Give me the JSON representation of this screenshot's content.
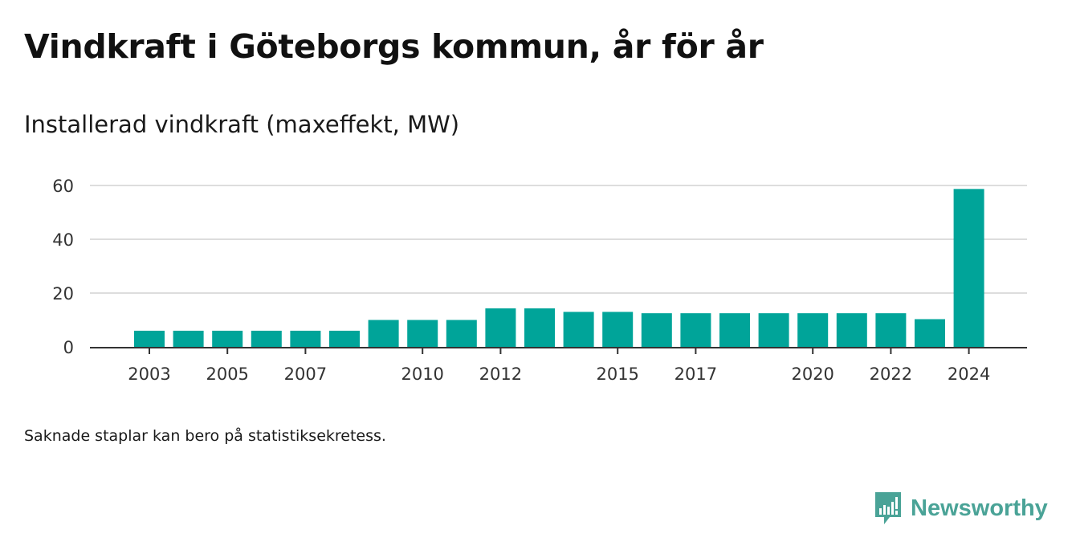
{
  "title": "Vindkraft i Göteborgs kommun, år för år",
  "subtitle": "Installerad vindkraft (maxeffekt, MW)",
  "footnote": "Saknade staplar kan bero på statistiksekretess.",
  "brand": {
    "name": "Newsworthy",
    "color": "#4aa397"
  },
  "chart_data": {
    "type": "bar",
    "title": "Vindkraft i Göteborgs kommun, år för år",
    "ylabel": "Installerad vindkraft (maxeffekt, MW)",
    "xlabel": "",
    "categories": [
      "2003",
      "2004",
      "2005",
      "2006",
      "2007",
      "2008",
      "2009",
      "2010",
      "2011",
      "2012",
      "2013",
      "2014",
      "2015",
      "2016",
      "2017",
      "2018",
      "2019",
      "2020",
      "2021",
      "2022",
      "2023",
      "2024"
    ],
    "values": [
      6,
      6,
      6,
      6,
      6,
      6,
      10,
      10,
      10,
      14.3,
      14.3,
      13,
      13,
      12.5,
      12.5,
      12.5,
      12.5,
      12.5,
      12.5,
      12.5,
      10.3,
      58.7
    ],
    "x_tick_labels": [
      "2003",
      "2005",
      "2007",
      "2010",
      "2012",
      "2015",
      "2017",
      "2020",
      "2022",
      "2024"
    ],
    "y_ticks": [
      0,
      20,
      40,
      60
    ],
    "ylim": [
      0,
      60
    ],
    "grid": true,
    "bar_color": "#00a499"
  }
}
